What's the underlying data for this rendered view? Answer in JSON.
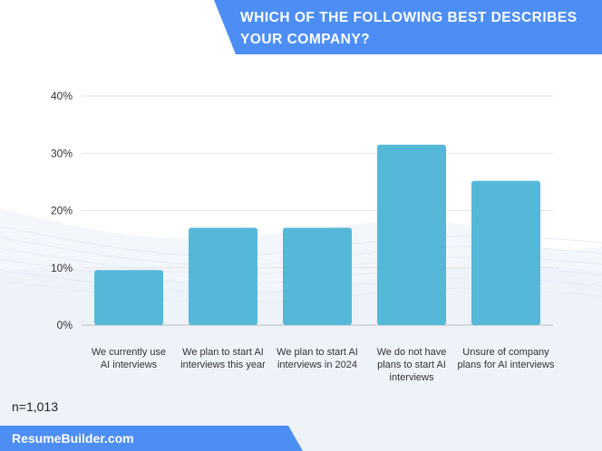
{
  "title": "Which of the following best describes your company?",
  "note": "n=1,013",
  "footer": {
    "brand": "ResumeBuilder.com"
  },
  "colors": {
    "bar": "#56b8d8",
    "accent": "#4d8ef5",
    "grid": "#e3e3e3"
  },
  "chart_data": {
    "type": "bar",
    "title": "Which of the following best describes your company?",
    "categories": [
      "We currently use AI interviews",
      "We plan to start AI interviews this year",
      "We plan to start AI interviews in 2024",
      "We do not have plans to start AI interviews",
      "Unsure of company plans for AI interviews"
    ],
    "category_lines": [
      [
        "We currently use",
        "AI interviews"
      ],
      [
        "We plan to start AI",
        "interviews this year"
      ],
      [
        "We plan to start AI",
        "interviews in 2024"
      ],
      [
        "We do not have",
        "plans to start AI",
        "interviews"
      ],
      [
        "Unsure of company",
        "plans for AI interviews"
      ]
    ],
    "values": [
      9.6,
      17,
      17,
      31.5,
      25.2
    ],
    "yticks": [
      "0%",
      "10%",
      "20%",
      "30%",
      "40%"
    ],
    "ylim": [
      0,
      40
    ],
    "grid": true,
    "xlabel": "",
    "ylabel": ""
  }
}
